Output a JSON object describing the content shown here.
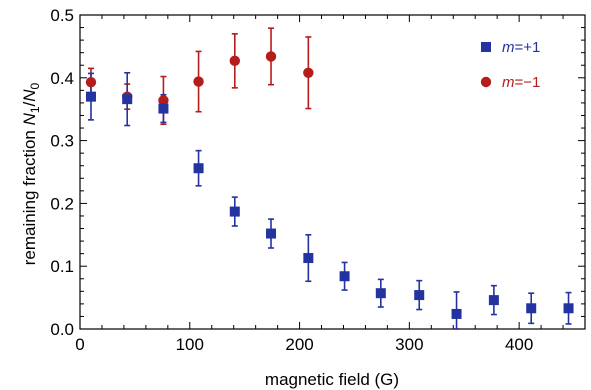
{
  "chart_data": {
    "type": "scatter",
    "xlabel": "magnetic field (G)",
    "ylabel_text": "remaining fraction ",
    "ylabel_n1": "N",
    "ylabel_n1_sub": "1",
    "ylabel_slash": "/",
    "ylabel_n0": "N",
    "ylabel_n0_sub": "0",
    "xlim": [
      0,
      460
    ],
    "ylim": [
      0,
      0.5
    ],
    "x_ticks": [
      0,
      100,
      200,
      300,
      400
    ],
    "x_tick_labels": [
      "0",
      "100",
      "200",
      "300",
      "400"
    ],
    "y_ticks": [
      0.0,
      0.1,
      0.2,
      0.3,
      0.4,
      0.5
    ],
    "y_tick_labels": [
      "0.0",
      "0.1",
      "0.2",
      "0.3",
      "0.4",
      "0.5"
    ],
    "grid": false,
    "legend_position": "top-right",
    "series": [
      {
        "name_var": "m",
        "name_val": "=+1",
        "marker": "square",
        "color": "#2433a0",
        "points": [
          {
            "x": 10,
            "y": 0.37,
            "err": 0.037
          },
          {
            "x": 43,
            "y": 0.366,
            "err": 0.042
          },
          {
            "x": 76,
            "y": 0.351,
            "err": 0.022
          },
          {
            "x": 108,
            "y": 0.256,
            "err": 0.028
          },
          {
            "x": 141,
            "y": 0.187,
            "err": 0.023
          },
          {
            "x": 174,
            "y": 0.152,
            "err": 0.023
          },
          {
            "x": 208,
            "y": 0.113,
            "err": 0.037
          },
          {
            "x": 241,
            "y": 0.084,
            "err": 0.022
          },
          {
            "x": 274,
            "y": 0.057,
            "err": 0.022
          },
          {
            "x": 309,
            "y": 0.054,
            "err": 0.023
          },
          {
            "x": 343,
            "y": 0.024,
            "err": 0.035
          },
          {
            "x": 377,
            "y": 0.046,
            "err": 0.023
          },
          {
            "x": 411,
            "y": 0.033,
            "err": 0.024
          },
          {
            "x": 445,
            "y": 0.033,
            "err": 0.025
          }
        ]
      },
      {
        "name_var": "m",
        "name_val": "=−1",
        "marker": "circle",
        "color": "#b51c1c",
        "points": [
          {
            "x": 10,
            "y": 0.393,
            "err": 0.022
          },
          {
            "x": 43,
            "y": 0.37,
            "err": 0.02
          },
          {
            "x": 76,
            "y": 0.364,
            "err": 0.038
          },
          {
            "x": 108,
            "y": 0.394,
            "err": 0.048
          },
          {
            "x": 141,
            "y": 0.427,
            "err": 0.043
          },
          {
            "x": 174,
            "y": 0.434,
            "err": 0.045
          },
          {
            "x": 208,
            "y": 0.408,
            "err": 0.057
          }
        ]
      }
    ]
  }
}
